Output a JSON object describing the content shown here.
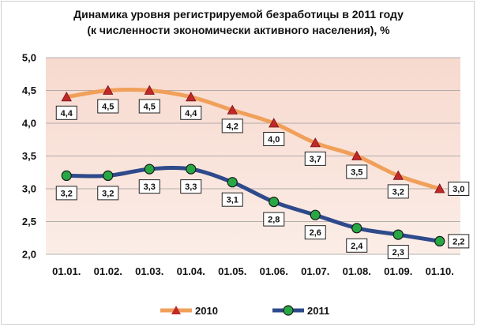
{
  "chart_data": {
    "type": "line",
    "title": "Динамика уровня регистрируемой безработицы в 2011 году",
    "subtitle": "(к численности экономически активного  населения), %",
    "categories": [
      "01.01.",
      "01.02.",
      "01.03.",
      "01.04.",
      "01.05.",
      "01.06.",
      "01.07.",
      "01.08.",
      "01.09.",
      "01.10."
    ],
    "y_ticks": [
      "5,0",
      "4,5",
      "4,0",
      "3,5",
      "3,0",
      "2,5",
      "2,0"
    ],
    "ylim": [
      2.0,
      5.0
    ],
    "series": [
      {
        "name": "2010",
        "marker": "triangle",
        "color": "#F0A05A",
        "marker_color": "#C0282A",
        "values": [
          4.4,
          4.5,
          4.5,
          4.4,
          4.2,
          4.0,
          3.7,
          3.5,
          3.2,
          3.0
        ],
        "labels": [
          "4,4",
          "4,5",
          "4,5",
          "4,4",
          "4,2",
          "4,0",
          "3,7",
          "3,5",
          "3,2",
          "3,0"
        ]
      },
      {
        "name": "2011",
        "marker": "circle",
        "color": "#2E4A8B",
        "marker_color": "#27A844",
        "values": [
          3.2,
          3.2,
          3.3,
          3.3,
          3.1,
          2.8,
          2.6,
          2.4,
          2.3,
          2.2
        ],
        "labels": [
          "3,2",
          "3,2",
          "3,3",
          "3,3",
          "3,1",
          "2,8",
          "2,6",
          "2,4",
          "2,3",
          "2,2"
        ]
      }
    ],
    "legend_position": "bottom-center",
    "grid": true
  }
}
